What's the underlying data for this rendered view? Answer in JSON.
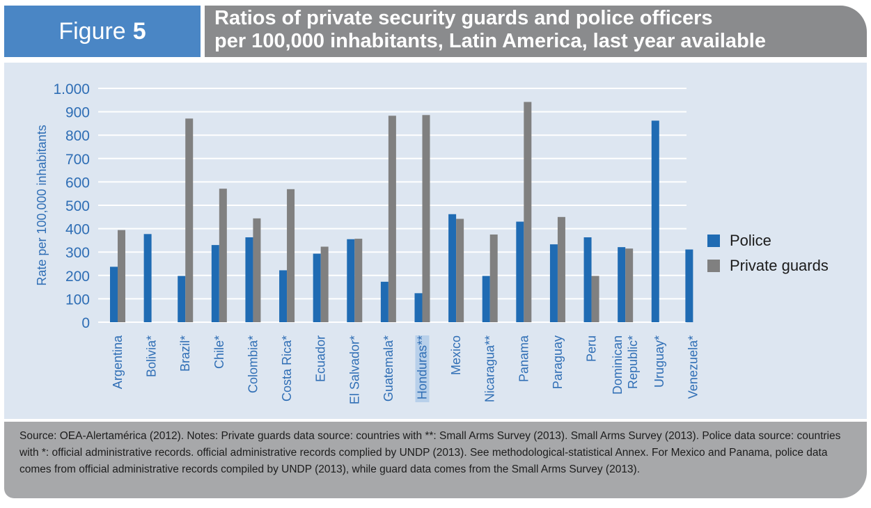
{
  "header": {
    "figure_word": "Figure",
    "figure_number": "5",
    "title_lines": [
      "Ratios of private security guards and police officers",
      "per 100,000 inhabitants, Latin America, last year available"
    ]
  },
  "source": {
    "lines": [
      "Source: OEA-Alertamérica (2012). Notes: Private guards data source: countries with **: Small Arms Survey (2013).  Small Arms Survey (2013). Police data source: countries",
      "with *: official administrative records. official administrative records complied by UNDP (2013). See methodological-statistical Annex. For Mexico and Panama, police data",
      "comes from official administrative records compiled by UNDP (2013), while  guard data comes from the Small Arms Survey (2013)."
    ]
  },
  "colors": {
    "police": "#1f6bb3",
    "guards": "#808080",
    "axis_text": "#2f6eb5",
    "panel": "#dde6f1",
    "highlight": "#b8d0ea"
  },
  "chart_data": {
    "type": "bar",
    "title": "",
    "xlabel": "",
    "ylabel": "Rate per 100,000 inhabitants",
    "ylim": [
      0,
      1000
    ],
    "yticks": [
      0,
      100,
      200,
      300,
      400,
      500,
      600,
      700,
      800,
      900,
      1000
    ],
    "ytick_labels": [
      "0",
      "100",
      "200",
      "300",
      "400",
      "500",
      "600",
      "700",
      "800",
      "900",
      "1.000"
    ],
    "grid": true,
    "legend_position": "right",
    "categories": [
      [
        "Argentina"
      ],
      [
        "Bolivia*"
      ],
      [
        "Brazil*"
      ],
      [
        "Chile*"
      ],
      [
        "Colombia*"
      ],
      [
        "Costa Rica*"
      ],
      [
        "Ecuador"
      ],
      [
        "El Salvador*"
      ],
      [
        "Guatemala*"
      ],
      [
        "Honduras**"
      ],
      [
        "Mexico"
      ],
      [
        "Nicaragua**"
      ],
      [
        "Panama"
      ],
      [
        "Paraguay"
      ],
      [
        "Peru"
      ],
      [
        "Dominican",
        "Republic*"
      ],
      [
        "Uruguay*"
      ],
      [
        "Venezuela*"
      ]
    ],
    "highlighted_category_index": 9,
    "series": [
      {
        "name": "Police",
        "values": [
          237,
          377,
          198,
          330,
          363,
          222,
          293,
          355,
          173,
          124,
          462,
          198,
          430,
          333,
          363,
          321,
          862,
          311
        ]
      },
      {
        "name": "Private guards",
        "values": [
          394,
          null,
          871,
          571,
          444,
          569,
          323,
          357,
          883,
          886,
          442,
          375,
          942,
          450,
          198,
          315,
          null,
          null
        ]
      }
    ]
  }
}
